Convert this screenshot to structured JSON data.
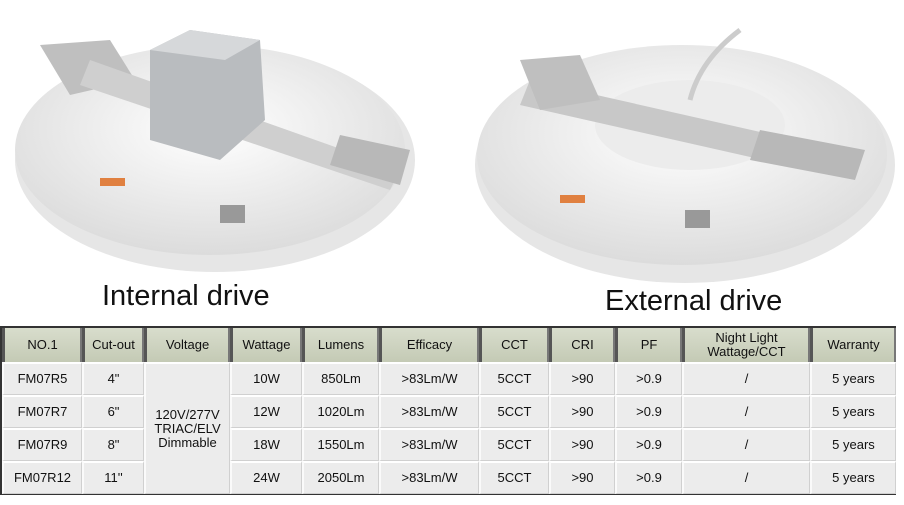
{
  "captions": {
    "internal": "Internal drive",
    "external": "External drive"
  },
  "table": {
    "headers": [
      "NO.1",
      "Cut-out",
      "Voltage",
      "Wattage",
      "Lumens",
      "Efficacy",
      "CCT",
      "CRI",
      "PF",
      "Night Light\nWattage/CCT",
      "Warranty"
    ],
    "voltage": "120V/277V\nTRIAC/ELV\nDimmable",
    "rows": [
      [
        "FM07R5",
        "4\"",
        "10W",
        "850Lm",
        ">83Lm/W",
        "5CCT",
        ">90",
        ">0.9",
        "/",
        "5 years"
      ],
      [
        "FM07R7",
        "6\"",
        "12W",
        "1020Lm",
        ">83Lm/W",
        "5CCT",
        ">90",
        ">0.9",
        "/",
        "5 years"
      ],
      [
        "FM07R9",
        "8\"",
        "18W",
        "1550Lm",
        ">83Lm/W",
        "5CCT",
        ">90",
        ">0.9",
        "/",
        "5 years"
      ],
      [
        "FM07R12",
        "11''",
        "24W",
        "2050Lm",
        ">83Lm/W",
        "5CCT",
        ">90",
        ">0.9",
        "/",
        "5 years"
      ]
    ]
  }
}
